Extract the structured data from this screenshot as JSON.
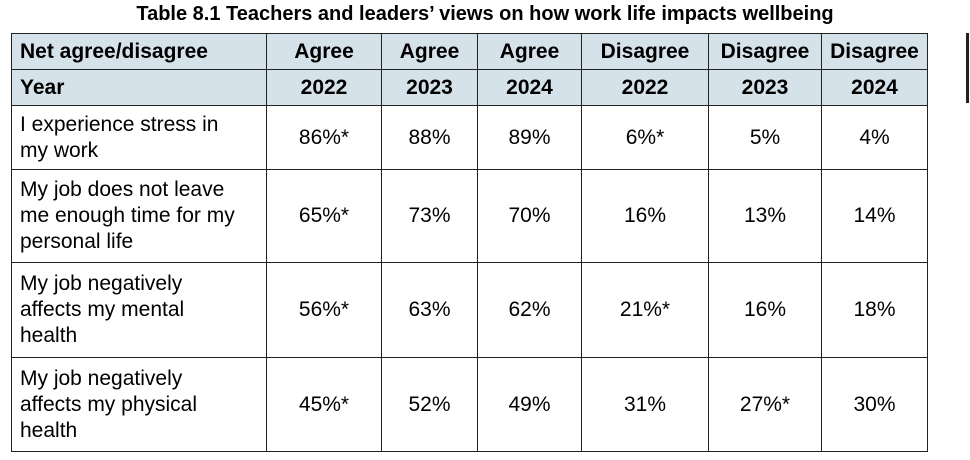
{
  "title": "Table 8.1 Teachers and leaders’ views on how work life impacts wellbeing",
  "header": {
    "row1": [
      "Net agree/disagree",
      "Agree",
      "Agree",
      "Agree",
      "Disagree",
      "Disagree",
      "Disagree"
    ],
    "row2": [
      "Year",
      "2022",
      "2023",
      "2024",
      "2022",
      "2023",
      "2024"
    ]
  },
  "rows": [
    {
      "label_lines": [
        "I experience stress in",
        "my work"
      ],
      "values": [
        "86%*",
        "88%",
        "89%",
        "6%*",
        "5%",
        "4%"
      ]
    },
    {
      "label_lines": [
        "My job does not leave",
        "me enough time for my",
        "personal life"
      ],
      "values": [
        "65%*",
        "73%",
        "70%",
        "16%",
        "13%",
        "14%"
      ]
    },
    {
      "label_lines": [
        "My job negatively",
        "affects my mental",
        "health"
      ],
      "values": [
        "56%*",
        "63%",
        "62%",
        "21%*",
        "16%",
        "18%"
      ]
    },
    {
      "label_lines": [
        "My job negatively",
        "affects my physical",
        "health"
      ],
      "values": [
        "45%*",
        "52%",
        "49%",
        "31%",
        "27%*",
        "30%"
      ]
    }
  ]
}
